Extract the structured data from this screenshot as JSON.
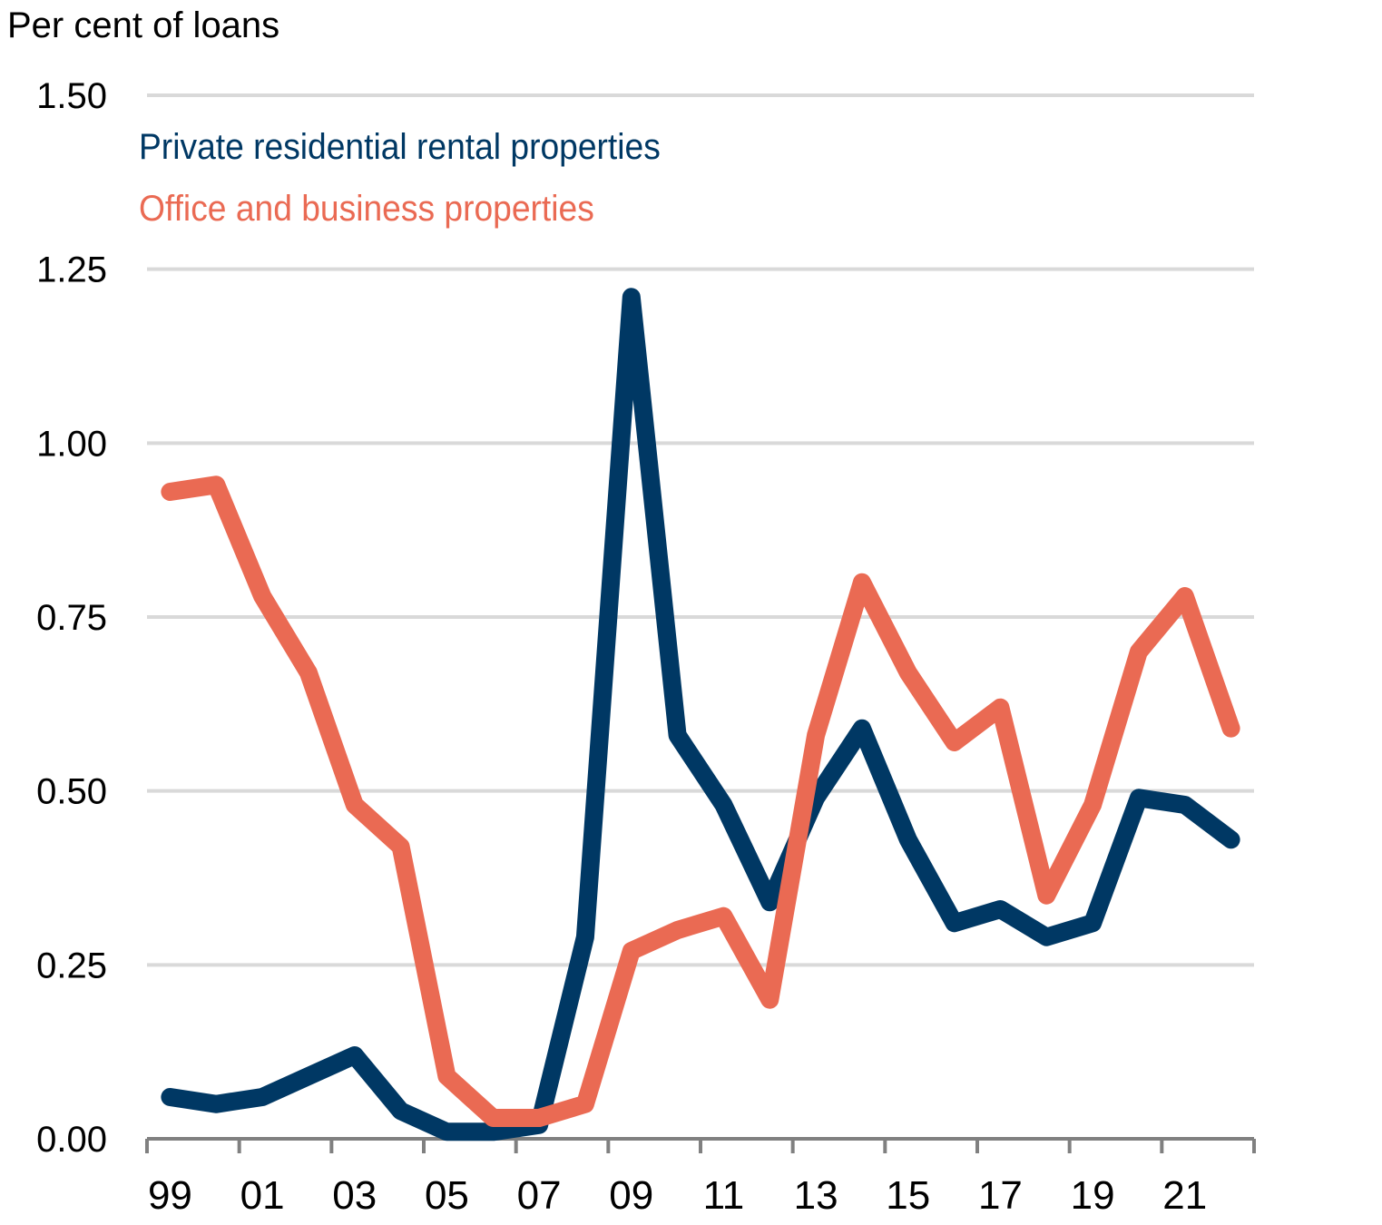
{
  "chart_data": {
    "type": "line",
    "title": "",
    "ylabel": "Per cent of loans",
    "xlabel": "",
    "ylim": [
      0,
      1.5
    ],
    "yticks": [
      "0.00",
      "0.25",
      "0.50",
      "0.75",
      "1.00",
      "1.25",
      "1.50"
    ],
    "ytick_values": [
      0,
      0.25,
      0.5,
      0.75,
      1.0,
      1.25,
      1.5
    ],
    "xlim": [
      1998.5,
      2022.5
    ],
    "xtick_labels": [
      "99",
      "01",
      "03",
      "05",
      "07",
      "09",
      "11",
      "13",
      "15",
      "17",
      "19",
      "21"
    ],
    "xtick_label_years": [
      1999,
      2001,
      2003,
      2005,
      2007,
      2009,
      2011,
      2013,
      2015,
      2017,
      2019,
      2021
    ],
    "xtick_positions": [
      1998.5,
      2000.5,
      2002.5,
      2004.5,
      2006.5,
      2008.5,
      2010.5,
      2012.5,
      2014.5,
      2016.5,
      2018.5,
      2020.5,
      2022.5
    ],
    "grid": true,
    "legend_placement": "top-left",
    "x": [
      1999,
      2000,
      2001,
      2002,
      2003,
      2004,
      2005,
      2006,
      2007,
      2008,
      2009,
      2010,
      2011,
      2012,
      2013,
      2014,
      2015,
      2016,
      2017,
      2018,
      2019,
      2020,
      2021,
      2022
    ],
    "series": [
      {
        "name": "Private residential rental properties",
        "color": "#003864",
        "values": [
          0.06,
          0.05,
          0.06,
          0.09,
          0.12,
          0.04,
          0.01,
          0.01,
          0.02,
          0.29,
          1.21,
          0.58,
          0.48,
          0.34,
          0.49,
          0.59,
          0.43,
          0.31,
          0.33,
          0.29,
          0.31,
          0.49,
          0.48,
          0.43
        ]
      },
      {
        "name": "Office and business properties",
        "color": "#EA6A53",
        "values": [
          0.93,
          0.94,
          0.78,
          0.67,
          0.48,
          0.42,
          0.09,
          0.03,
          0.03,
          0.05,
          0.27,
          0.3,
          0.32,
          0.2,
          0.58,
          0.8,
          0.67,
          0.57,
          0.62,
          0.35,
          0.48,
          0.7,
          0.78,
          0.59
        ]
      }
    ]
  },
  "colors": {
    "gridline": "#D9D9D9",
    "axis": "#808080",
    "text": "#000000"
  }
}
